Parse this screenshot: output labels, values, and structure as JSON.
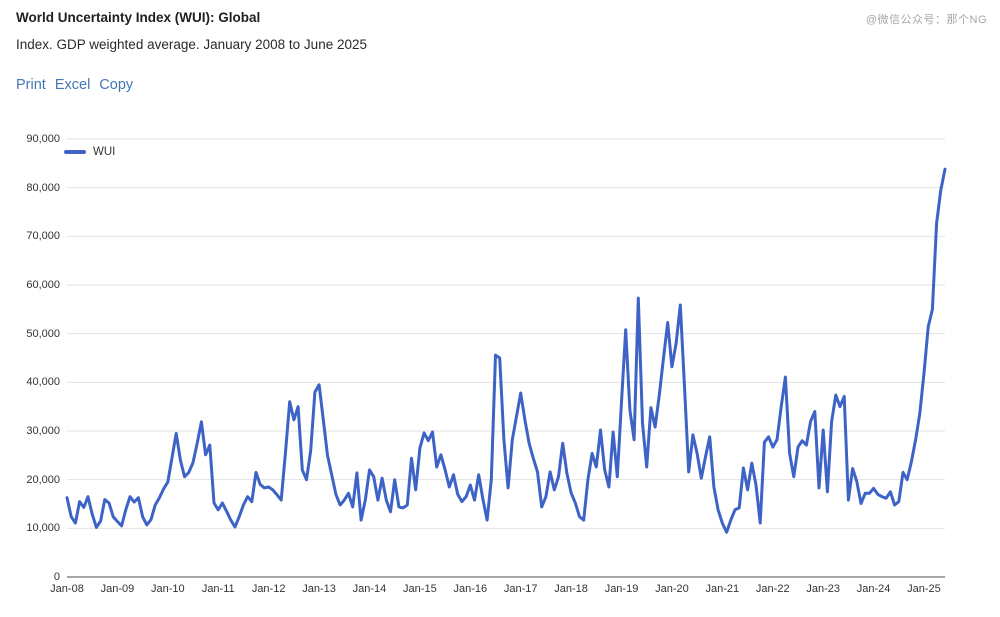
{
  "header": {
    "title": "World Uncertainty Index (WUI): Global",
    "subtitle": "Index. GDP weighted average. January 2008 to June 2025",
    "watermark": "@微信公众号：那个NG"
  },
  "toolbar": {
    "print_label": "Print",
    "excel_label": "Excel",
    "copy_label": "Copy"
  },
  "colors": {
    "line_blue": "#3E63C6",
    "link_blue": "#4576b5",
    "grid": "#e2e2e2",
    "axis_baseline": "#8a8a8a",
    "tick_text": "#333333"
  },
  "chart_data": {
    "type": "line",
    "title": "World Uncertainty Index (WUI): Global",
    "subtitle": "Index. GDP weighted average. January 2008 to June 2025",
    "x_unit": "month",
    "x_start": "Jan-2008",
    "x_end": "Jun-2025",
    "ylim": [
      0,
      90000
    ],
    "y_tick_step": 10000,
    "grid": "horizontal",
    "legend_position": "top-left",
    "x_tick_labels": [
      "Jan-08",
      "Jan-09",
      "Jan-10",
      "Jan-11",
      "Jan-12",
      "Jan-13",
      "Jan-14",
      "Jan-15",
      "Jan-16",
      "Jan-17",
      "Jan-18",
      "Jan-19",
      "Jan-20",
      "Jan-21",
      "Jan-22",
      "Jan-23",
      "Jan-24",
      "Jan-25"
    ],
    "y_tick_labels": [
      "0",
      "10,000",
      "20,000",
      "30,000",
      "40,000",
      "50,000",
      "60,000",
      "70,000",
      "80,000",
      "90,000"
    ],
    "series": [
      {
        "name": "WUI",
        "color": "#3E63C6",
        "values": [
          16300,
          12400,
          11100,
          15500,
          14300,
          16500,
          12900,
          10200,
          11500,
          15900,
          15200,
          12400,
          11400,
          10500,
          13800,
          16500,
          15400,
          16300,
          12400,
          10700,
          11800,
          14800,
          16300,
          18100,
          19500,
          24500,
          29500,
          24000,
          20600,
          21500,
          23500,
          27500,
          31900,
          25100,
          27100,
          15200,
          13800,
          15200,
          13500,
          11700,
          10300,
          12400,
          14800,
          16500,
          15500,
          21500,
          19000,
          18300,
          18500,
          17900,
          16900,
          15800,
          25400,
          36000,
          32300,
          35000,
          22000,
          20000,
          26000,
          38000,
          39500,
          32300,
          25000,
          21000,
          17000,
          14800,
          15800,
          17200,
          14400,
          21400,
          11700,
          15800,
          22000,
          20600,
          15800,
          20300,
          15800,
          13400,
          20000,
          14400,
          14200,
          14800,
          24400,
          17900,
          26500,
          29600,
          28000,
          29800,
          22600,
          25100,
          22000,
          18500,
          21000,
          17000,
          15500,
          16500,
          18900,
          15800,
          21000,
          16000,
          11700,
          20000,
          45600,
          45000,
          28200,
          18300,
          28200,
          33000,
          37800,
          32300,
          27500,
          24400,
          21600,
          14400,
          16500,
          21600,
          17900,
          20600,
          27500,
          21300,
          17300,
          15200,
          12400,
          11700,
          20000,
          25400,
          22600,
          30200,
          22000,
          18500,
          29800,
          20600,
          36000,
          50800,
          34300,
          28200,
          57300,
          31600,
          22600,
          34800,
          30800,
          37400,
          45000,
          52300,
          43200,
          48000,
          55900,
          39100,
          21600,
          29200,
          25400,
          20300,
          24700,
          28800,
          18500,
          13800,
          11100,
          9200,
          11700,
          13800,
          14200,
          22400,
          17900,
          23400,
          18900,
          11100,
          27700,
          28800,
          26700,
          28200,
          35000,
          41100,
          25400,
          20600,
          26700,
          28000,
          27100,
          32000,
          34000,
          18300,
          30200,
          17500,
          31900,
          37400,
          35000,
          37100,
          15800,
          22300,
          19600,
          15100,
          17200,
          17200,
          18200,
          17000,
          16500,
          16200,
          17500,
          14800,
          15500,
          21500,
          20000,
          23700,
          28200,
          33600,
          41900,
          51400,
          55000,
          72700,
          79500,
          83800
        ]
      }
    ]
  }
}
